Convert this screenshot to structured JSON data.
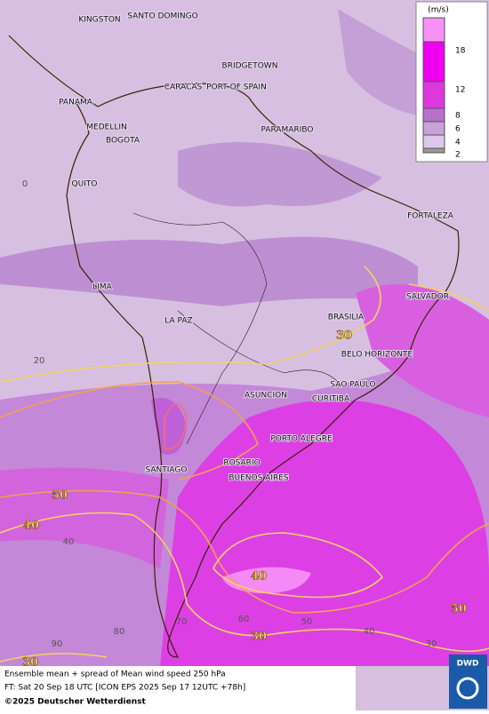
{
  "legend": {
    "unit": "(m/s)",
    "levels": [
      18,
      12,
      8,
      6,
      4,
      2
    ]
  },
  "cities": [
    "KINGSTON",
    "SANTO DOMINGO",
    "BRIDGETOWN",
    "CARACAS",
    "PORT OF SPAIN",
    "PANAMA",
    "MEDELLIN",
    "BOGOTA",
    "PARAMARIBO",
    "QUITO",
    "FORTALEZA",
    "LIMA",
    "SALVADOR",
    "LA PAZ",
    "BRASILIA",
    "BELO HORIZONTE",
    "SAO PAULO",
    "ASUNCION",
    "CURITIBA",
    "PORTO ALEGRE",
    "ROSARIO",
    "SANTIAGO",
    "BUENOS AIRES"
  ],
  "grid_labels": [
    0,
    20,
    40,
    90,
    80,
    70,
    60,
    50,
    40,
    30
  ],
  "contour_labels": [
    30,
    50,
    40,
    40,
    50,
    30,
    30
  ],
  "footer": {
    "line1": "Ensemble mean + spread of Mean wind speed 250 hPa",
    "line2": "FT: Sat 20 Sep 18 UTC [ICON EPS 2025 Sep 17 12UTC +78h]",
    "copyright": "©2025 Deutscher Wetterdienst"
  },
  "logo": "DWD"
}
